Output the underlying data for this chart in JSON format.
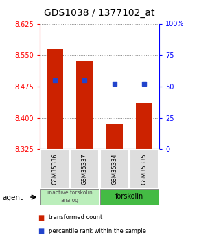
{
  "title": "GDS1038 / 1377102_at",
  "samples": [
    "GSM35336",
    "GSM35337",
    "GSM35334",
    "GSM35335"
  ],
  "bar_values": [
    8.565,
    8.535,
    8.385,
    8.435
  ],
  "percentile_values": [
    55,
    55,
    52,
    52
  ],
  "ylim_left": [
    8.325,
    8.625
  ],
  "ylim_right": [
    0,
    100
  ],
  "yticks_left": [
    8.325,
    8.4,
    8.475,
    8.55,
    8.625
  ],
  "yticks_right": [
    0,
    25,
    50,
    75,
    100
  ],
  "bar_bottom": 8.325,
  "bar_color": "#cc2200",
  "dot_color": "#2244cc",
  "group0_label": "inactive forskolin\nanalog",
  "group0_color": "#bbeebb",
  "group1_label": "forskolin",
  "group1_color": "#44bb44",
  "agent_label": "agent",
  "legend_red_label": "transformed count",
  "legend_blue_label": "percentile rank within the sample",
  "grid_color": "#888888",
  "title_fontsize": 10,
  "tick_fontsize": 7,
  "label_fontsize": 7
}
